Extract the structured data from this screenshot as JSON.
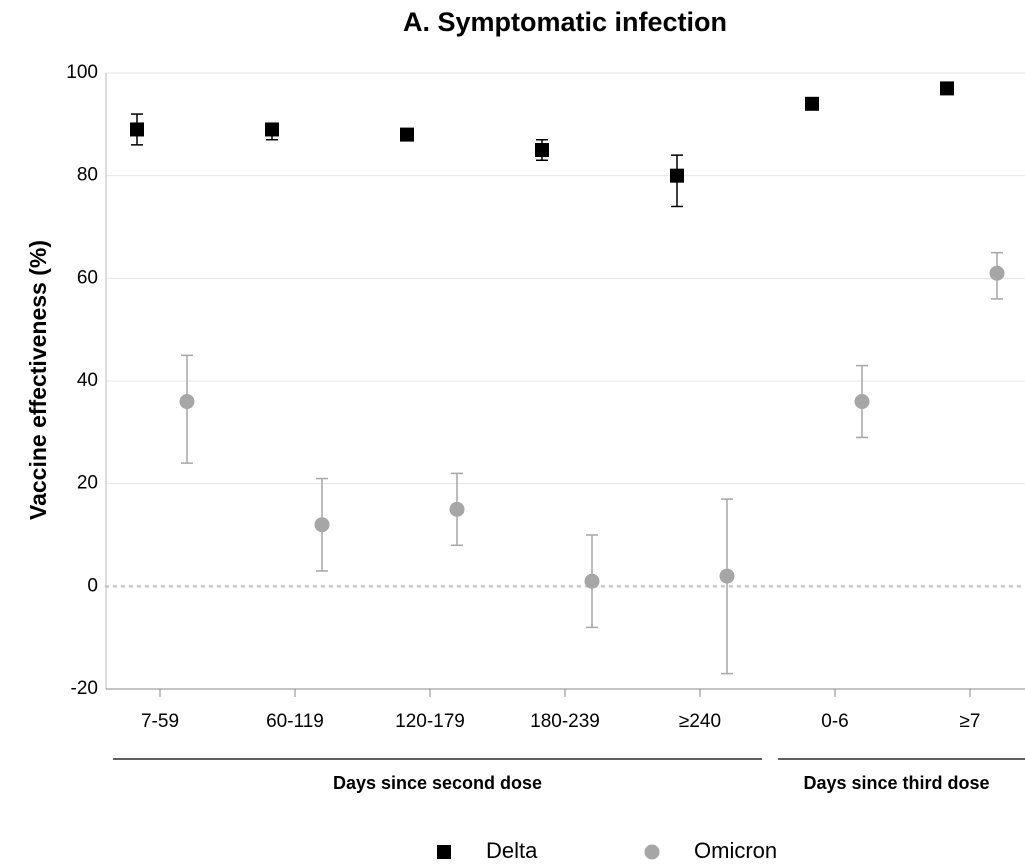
{
  "chart_data": {
    "type": "errorbar-scatter",
    "title": "A. Symptomatic infection",
    "y_label": "Vaccine effectiveness (%)",
    "categories": [
      "7-59",
      "60-119",
      "120-179",
      "180-239",
      "≥240",
      "0-6",
      "≥7"
    ],
    "group_labels": [
      "Days since second dose",
      "Days since third dose"
    ],
    "series": [
      {
        "name": "Delta",
        "color": "#000000",
        "marker": "square",
        "values": [
          89,
          89,
          88,
          85,
          80,
          94,
          97
        ],
        "ci_low": [
          86,
          87,
          null,
          83,
          74,
          null,
          null
        ],
        "ci_high": [
          92,
          90,
          null,
          87,
          84,
          null,
          null
        ]
      },
      {
        "name": "Omicron",
        "color": "#a6a6a6",
        "marker": "circle",
        "values": [
          36,
          12,
          15,
          1,
          2,
          36,
          61
        ],
        "ci_low": [
          24,
          3,
          8,
          -8,
          -17,
          29,
          56
        ],
        "ci_high": [
          45,
          21,
          22,
          10,
          17,
          43,
          65
        ]
      }
    ],
    "ylim": [
      -20,
      100
    ],
    "yticks": [
      -20,
      0,
      20,
      40,
      60,
      80,
      100
    ],
    "grid": true,
    "legend": "bottom"
  }
}
